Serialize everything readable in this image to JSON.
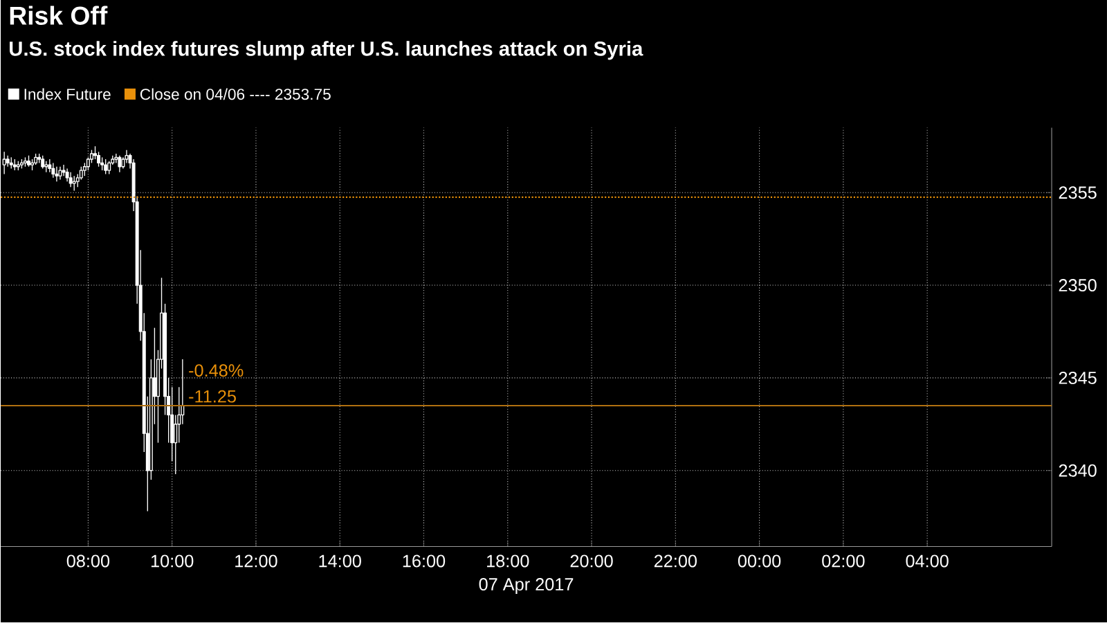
{
  "chart_data": {
    "type": "candlestick",
    "title": "Risk Off",
    "subtitle": "U.S. stock index futures slump after U.S. launches attack on Syria",
    "xlabel": "07 Apr 2017",
    "x": [
      "2017-04-07T06:00",
      "2017-04-07T06:05",
      "2017-04-07T06:10",
      "2017-04-07T06:15",
      "2017-04-07T06:20",
      "2017-04-07T06:25",
      "2017-04-07T06:30",
      "2017-04-07T06:35",
      "2017-04-07T06:40",
      "2017-04-07T06:45",
      "2017-04-07T06:50",
      "2017-04-07T06:55",
      "2017-04-07T07:00",
      "2017-04-07T07:05",
      "2017-04-07T07:10",
      "2017-04-07T07:15",
      "2017-04-07T07:20",
      "2017-04-07T07:25",
      "2017-04-07T07:30",
      "2017-04-07T07:35",
      "2017-04-07T07:40",
      "2017-04-07T07:45",
      "2017-04-07T07:50",
      "2017-04-07T07:55",
      "2017-04-07T08:00",
      "2017-04-07T08:05",
      "2017-04-07T08:10",
      "2017-04-07T08:15",
      "2017-04-07T08:20",
      "2017-04-07T08:25",
      "2017-04-07T08:30",
      "2017-04-07T08:35",
      "2017-04-07T08:40",
      "2017-04-07T08:45",
      "2017-04-07T08:50",
      "2017-04-07T08:55",
      "2017-04-07T09:00",
      "2017-04-07T09:05",
      "2017-04-07T09:10",
      "2017-04-07T09:15",
      "2017-04-07T09:20",
      "2017-04-07T09:25",
      "2017-04-07T09:30",
      "2017-04-07T09:35",
      "2017-04-07T09:40",
      "2017-04-07T09:45",
      "2017-04-07T09:50",
      "2017-04-07T09:55",
      "2017-04-07T10:00",
      "2017-04-07T10:05",
      "2017-04-07T10:10",
      "2017-04-07T10:15"
    ],
    "series": [
      {
        "name": "Index Future",
        "color": "#ffffff",
        "ohlc": [
          [
            2356.5,
            2357.2,
            2356.0,
            2356.8
          ],
          [
            2356.8,
            2357.0,
            2356.4,
            2356.6
          ],
          [
            2356.6,
            2356.9,
            2356.3,
            2356.5
          ],
          [
            2356.5,
            2356.8,
            2356.2,
            2356.4
          ],
          [
            2356.4,
            2356.7,
            2356.2,
            2356.5
          ],
          [
            2356.5,
            2356.8,
            2356.3,
            2356.6
          ],
          [
            2356.6,
            2356.9,
            2356.4,
            2356.7
          ],
          [
            2356.7,
            2357.0,
            2356.4,
            2356.5
          ],
          [
            2356.5,
            2356.8,
            2356.2,
            2356.6
          ],
          [
            2356.6,
            2357.1,
            2356.5,
            2356.9
          ],
          [
            2356.9,
            2357.1,
            2356.6,
            2356.8
          ],
          [
            2356.8,
            2357.0,
            2356.3,
            2356.4
          ],
          [
            2356.4,
            2356.7,
            2356.1,
            2356.5
          ],
          [
            2356.5,
            2356.8,
            2356.1,
            2356.3
          ],
          [
            2356.3,
            2356.6,
            2355.8,
            2356.0
          ],
          [
            2356.0,
            2356.4,
            2355.6,
            2355.9
          ],
          [
            2355.9,
            2356.4,
            2355.7,
            2356.2
          ],
          [
            2356.2,
            2356.5,
            2355.9,
            2356.1
          ],
          [
            2356.1,
            2356.3,
            2355.6,
            2355.8
          ],
          [
            2355.8,
            2356.1,
            2355.3,
            2355.5
          ],
          [
            2355.5,
            2355.9,
            2355.1,
            2355.6
          ],
          [
            2355.6,
            2356.0,
            2355.3,
            2355.8
          ],
          [
            2355.8,
            2356.4,
            2355.7,
            2356.2
          ],
          [
            2356.2,
            2356.6,
            2355.9,
            2356.4
          ],
          [
            2356.4,
            2356.9,
            2356.2,
            2356.8
          ],
          [
            2356.8,
            2357.3,
            2356.6,
            2357.1
          ],
          [
            2357.1,
            2357.5,
            2356.8,
            2357.0
          ],
          [
            2357.0,
            2357.2,
            2356.4,
            2356.6
          ],
          [
            2356.6,
            2356.9,
            2356.2,
            2356.5
          ],
          [
            2356.5,
            2356.8,
            2356.0,
            2356.2
          ],
          [
            2356.2,
            2356.7,
            2356.0,
            2356.6
          ],
          [
            2356.6,
            2357.0,
            2356.5,
            2356.8
          ],
          [
            2356.8,
            2357.1,
            2356.6,
            2356.9
          ],
          [
            2356.9,
            2357.0,
            2356.1,
            2356.4
          ],
          [
            2356.4,
            2356.9,
            2356.3,
            2356.8
          ],
          [
            2356.8,
            2357.3,
            2356.6,
            2357.0
          ],
          [
            2357.0,
            2357.1,
            2356.3,
            2356.6
          ],
          [
            2356.6,
            2356.8,
            2354.0,
            2354.5
          ],
          [
            2354.5,
            2354.8,
            2349.0,
            2350.0
          ],
          [
            2350.0,
            2351.9,
            2347.0,
            2347.5
          ],
          [
            2347.5,
            2348.5,
            2341.0,
            2342.0
          ],
          [
            2342.0,
            2344.0,
            2337.8,
            2340.0
          ],
          [
            2340.0,
            2346.0,
            2339.5,
            2345.0
          ],
          [
            2345.0,
            2347.7,
            2342.5,
            2344.0
          ],
          [
            2344.0,
            2346.5,
            2341.5,
            2346.0
          ],
          [
            2346.0,
            2350.4,
            2345.5,
            2348.5
          ],
          [
            2348.5,
            2349.0,
            2343.0,
            2344.0
          ],
          [
            2344.0,
            2345.0,
            2341.5,
            2343.0
          ],
          [
            2343.0,
            2344.5,
            2340.5,
            2341.5
          ],
          [
            2341.5,
            2343.0,
            2339.8,
            2342.5
          ],
          [
            2342.5,
            2344.5,
            2341.5,
            2343.0
          ],
          [
            2343.0,
            2346.0,
            2342.5,
            2343.5
          ]
        ]
      }
    ],
    "xlim": [
      "2017-04-07T05:55",
      "2017-04-08T06:58"
    ],
    "xticks": [
      {
        "value": "2017-04-07T08:00",
        "label": "08:00"
      },
      {
        "value": "2017-04-07T10:00",
        "label": "10:00"
      },
      {
        "value": "2017-04-07T12:00",
        "label": "12:00"
      },
      {
        "value": "2017-04-07T14:00",
        "label": "14:00"
      },
      {
        "value": "2017-04-07T16:00",
        "label": "16:00"
      },
      {
        "value": "2017-04-07T18:00",
        "label": "18:00"
      },
      {
        "value": "2017-04-07T20:00",
        "label": "20:00"
      },
      {
        "value": "2017-04-07T22:00",
        "label": "22:00"
      },
      {
        "value": "2017-04-08T00:00",
        "label": "00:00"
      },
      {
        "value": "2017-04-08T02:00",
        "label": "02:00"
      },
      {
        "value": "2017-04-08T04:00",
        "label": "04:00"
      }
    ],
    "ylim": [
      2335.9,
      2358.5
    ],
    "yticks": [
      2340,
      2345,
      2350,
      2355
    ],
    "ref_lines": [
      {
        "axis": "y",
        "value": 2354.75,
        "label": "Close on 04/06 ---- 2353.75",
        "color": "#e8900a",
        "line_style": "dotted"
      },
      {
        "axis": "y",
        "value": 2343.5,
        "color": "#b07010",
        "line_style": "solid"
      }
    ],
    "annotations": [
      {
        "text": "-0.48%",
        "x": "2017-04-07T10:20",
        "y": 2345.4
      },
      {
        "text": "-11.25",
        "x": "2017-04-07T10:20",
        "y": 2344.0
      }
    ],
    "grid": true,
    "legend": "top left"
  }
}
